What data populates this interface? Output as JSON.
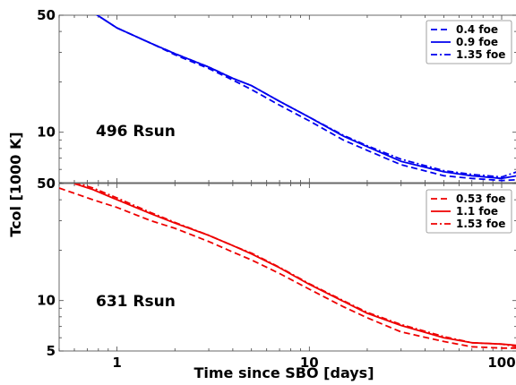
{
  "chart_data": [
    {
      "type": "line",
      "xscale": "log",
      "yscale": "log",
      "xlim": [
        0.5,
        120
      ],
      "ylim": [
        5,
        50
      ],
      "xticks": [
        1,
        10,
        100
      ],
      "yticks": [
        10,
        50
      ],
      "xlabel": "Time since SBO [days]",
      "ylabel": "Tcol [1000 K]",
      "annotation": "496 Rsun",
      "legend": "top-right",
      "color": "#0000ee",
      "series": [
        {
          "name": "0.4 foe",
          "style": "dashed",
          "x": [
            0.75,
            1,
            1.5,
            2,
            3,
            4,
            5,
            7,
            10,
            15,
            20,
            30,
            50,
            70,
            100,
            120
          ],
          "y": [
            52,
            42,
            34,
            29,
            24,
            20.5,
            18,
            14.5,
            11.7,
            9,
            7.8,
            6.4,
            5.5,
            5.3,
            5.15,
            5.2
          ]
        },
        {
          "name": "0.9 foe",
          "style": "solid",
          "x": [
            0.75,
            1,
            1.5,
            2,
            3,
            4,
            5,
            7,
            10,
            15,
            20,
            30,
            50,
            70,
            100,
            120
          ],
          "y": [
            52,
            42,
            34,
            29.5,
            24.5,
            21,
            19,
            15.3,
            12.3,
            9.5,
            8.2,
            6.7,
            5.8,
            5.5,
            5.3,
            5.5
          ]
        },
        {
          "name": "1.35 foe",
          "style": "dashdot",
          "x": [
            0.75,
            1,
            1.5,
            2,
            3,
            4,
            5,
            7,
            10,
            15,
            20,
            30,
            50,
            70,
            100,
            120
          ],
          "y": [
            52,
            42,
            34,
            29.5,
            24.5,
            21,
            19,
            15.3,
            12.3,
            9.6,
            8.3,
            6.9,
            5.9,
            5.6,
            5.4,
            5.8
          ]
        }
      ]
    },
    {
      "type": "line",
      "xscale": "log",
      "yscale": "log",
      "xlim": [
        0.5,
        120
      ],
      "ylim": [
        5,
        50
      ],
      "xticks": [
        1,
        10,
        100
      ],
      "yticks": [
        5,
        10,
        50
      ],
      "xlabel": "Time since SBO [days]",
      "ylabel": "Tcol [1000 K]",
      "annotation": "631 Rsun",
      "legend": "top-right",
      "color": "#ee0000",
      "series": [
        {
          "name": "0.53 foe",
          "style": "dashed",
          "x": [
            0.5,
            0.75,
            1,
            1.5,
            2,
            3,
            4,
            5,
            7,
            10,
            15,
            20,
            30,
            50,
            70,
            100,
            120
          ],
          "y": [
            47,
            40,
            36,
            30,
            27,
            22.5,
            19.5,
            17.5,
            14.5,
            11.7,
            9.2,
            7.9,
            6.5,
            5.7,
            5.3,
            5.2,
            5.2
          ]
        },
        {
          "name": "1.1 foe",
          "style": "solid",
          "x": [
            0.6,
            0.75,
            1,
            1.5,
            2,
            3,
            4,
            5,
            7,
            10,
            15,
            20,
            30,
            50,
            70,
            100,
            120
          ],
          "y": [
            50,
            46,
            40,
            33,
            29,
            24.5,
            21.3,
            19,
            15.7,
            12.5,
            9.9,
            8.4,
            7.1,
            6,
            5.6,
            5.5,
            5.4
          ]
        },
        {
          "name": "1.53 foe",
          "style": "dashdot",
          "x": [
            0.6,
            0.75,
            1,
            1.5,
            2,
            3,
            4,
            5,
            7,
            10,
            15,
            20,
            30,
            50,
            70,
            100,
            120
          ],
          "y": [
            51,
            47,
            41,
            33.5,
            29.3,
            24.5,
            21.3,
            19.2,
            15.8,
            12.6,
            10,
            8.5,
            7.2,
            6.1,
            5.6,
            5.5,
            5.3
          ]
        }
      ]
    }
  ]
}
